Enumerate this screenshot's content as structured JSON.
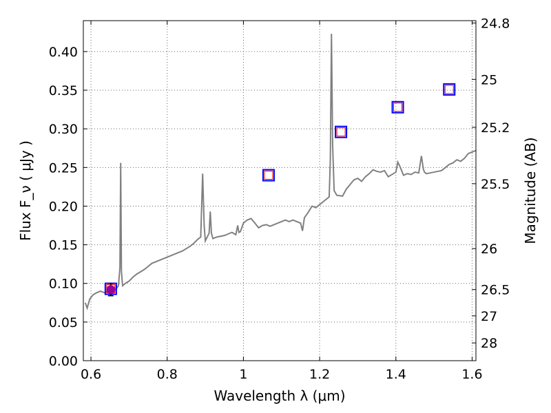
{
  "chart_data": {
    "type": "line",
    "title": "",
    "xlabel": "Wavelength  λ (μm)",
    "ylabel": "Flux  F_ν  ( μJy )",
    "ylabel_right": "Magnitude (AB)",
    "xlim": [
      0.58,
      1.61
    ],
    "ylim": [
      0.0,
      0.44
    ],
    "grid": true,
    "x_ticks": [
      0.6,
      0.8,
      1.0,
      1.2,
      1.4,
      1.6
    ],
    "x_tick_labels": [
      "0.6",
      "0.8",
      "1",
      "1.2",
      "1.4",
      "1.6"
    ],
    "y_ticks": [
      0.0,
      0.05,
      0.1,
      0.15,
      0.2,
      0.25,
      0.3,
      0.35,
      0.4
    ],
    "y_tick_labels": [
      "0.00",
      "0.05",
      "0.10",
      "0.15",
      "0.20",
      "0.25",
      "0.30",
      "0.35",
      "0.40"
    ],
    "right_ticks": [
      {
        "flux": 0.437,
        "label": "24.8"
      },
      {
        "flux": 0.364,
        "label": "25"
      },
      {
        "flux": 0.302,
        "label": "25.2"
      },
      {
        "flux": 0.229,
        "label": "25.5"
      },
      {
        "flux": 0.145,
        "label": "26"
      },
      {
        "flux": 0.092,
        "label": "26.5"
      },
      {
        "flux": 0.058,
        "label": "27"
      },
      {
        "flux": 0.023,
        "label": "28"
      }
    ],
    "colors": {
      "spectrum": "#808080",
      "observed_marker": "#0000ff",
      "model_marker": "#ff0000",
      "first_point_fill": "#990099"
    },
    "series": [
      {
        "name": "model spectrum",
        "kind": "line",
        "x": [
          0.585,
          0.59,
          0.597,
          0.605,
          0.615,
          0.625,
          0.635,
          0.645,
          0.655,
          0.665,
          0.672,
          0.676,
          0.678,
          0.68,
          0.683,
          0.69,
          0.7,
          0.71,
          0.72,
          0.73,
          0.74,
          0.75,
          0.76,
          0.77,
          0.78,
          0.79,
          0.8,
          0.81,
          0.82,
          0.83,
          0.84,
          0.85,
          0.86,
          0.87,
          0.88,
          0.888,
          0.893,
          0.897,
          0.9,
          0.905,
          0.91,
          0.913,
          0.916,
          0.92,
          0.93,
          0.94,
          0.95,
          0.96,
          0.97,
          0.98,
          0.985,
          0.988,
          0.992,
          1.0,
          1.01,
          1.02,
          1.03,
          1.04,
          1.05,
          1.06,
          1.07,
          1.08,
          1.09,
          1.1,
          1.11,
          1.12,
          1.13,
          1.14,
          1.15,
          1.155,
          1.16,
          1.17,
          1.18,
          1.19,
          1.2,
          1.21,
          1.22,
          1.225,
          1.228,
          1.231,
          1.234,
          1.238,
          1.245,
          1.26,
          1.27,
          1.28,
          1.29,
          1.3,
          1.31,
          1.32,
          1.33,
          1.34,
          1.35,
          1.36,
          1.37,
          1.38,
          1.39,
          1.4,
          1.405,
          1.41,
          1.42,
          1.43,
          1.44,
          1.45,
          1.46,
          1.467,
          1.472,
          1.475,
          1.48,
          1.49,
          1.5,
          1.51,
          1.52,
          1.53,
          1.54,
          1.55,
          1.56,
          1.57,
          1.58,
          1.59,
          1.6,
          1.61
        ],
        "y": [
          0.075,
          0.068,
          0.08,
          0.085,
          0.088,
          0.09,
          0.088,
          0.09,
          0.094,
          0.092,
          0.097,
          0.12,
          0.256,
          0.115,
          0.097,
          0.1,
          0.103,
          0.108,
          0.112,
          0.115,
          0.118,
          0.122,
          0.126,
          0.128,
          0.13,
          0.132,
          0.134,
          0.136,
          0.138,
          0.14,
          0.142,
          0.145,
          0.148,
          0.152,
          0.157,
          0.16,
          0.242,
          0.175,
          0.155,
          0.16,
          0.165,
          0.193,
          0.165,
          0.158,
          0.16,
          0.161,
          0.162,
          0.164,
          0.166,
          0.163,
          0.175,
          0.166,
          0.167,
          0.178,
          0.182,
          0.184,
          0.178,
          0.172,
          0.175,
          0.176,
          0.174,
          0.176,
          0.178,
          0.18,
          0.182,
          0.18,
          0.182,
          0.18,
          0.178,
          0.168,
          0.185,
          0.192,
          0.2,
          0.198,
          0.202,
          0.206,
          0.21,
          0.212,
          0.26,
          0.423,
          0.28,
          0.22,
          0.214,
          0.213,
          0.222,
          0.228,
          0.234,
          0.236,
          0.232,
          0.238,
          0.242,
          0.247,
          0.245,
          0.244,
          0.246,
          0.238,
          0.241,
          0.244,
          0.257,
          0.252,
          0.24,
          0.242,
          0.241,
          0.244,
          0.243,
          0.265,
          0.248,
          0.244,
          0.242,
          0.243,
          0.244,
          0.245,
          0.246,
          0.25,
          0.254,
          0.256,
          0.26,
          0.258,
          0.262,
          0.268,
          0.27,
          0.272
        ]
      },
      {
        "name": "observed photometry",
        "kind": "square-markers",
        "x": [
          0.652,
          1.066,
          1.256,
          1.405,
          1.54
        ],
        "y": [
          0.093,
          0.24,
          0.296,
          0.328,
          0.351
        ]
      },
      {
        "name": "model photometry",
        "kind": "small-square-markers",
        "x": [
          0.652,
          1.066,
          1.256,
          1.405,
          1.54
        ],
        "y": [
          0.093,
          0.24,
          0.296,
          0.328,
          0.351
        ]
      },
      {
        "name": "detected point",
        "kind": "filled-circle",
        "x": [
          0.652
        ],
        "y": [
          0.092
        ],
        "yerr": [
          0.008
        ]
      }
    ]
  }
}
